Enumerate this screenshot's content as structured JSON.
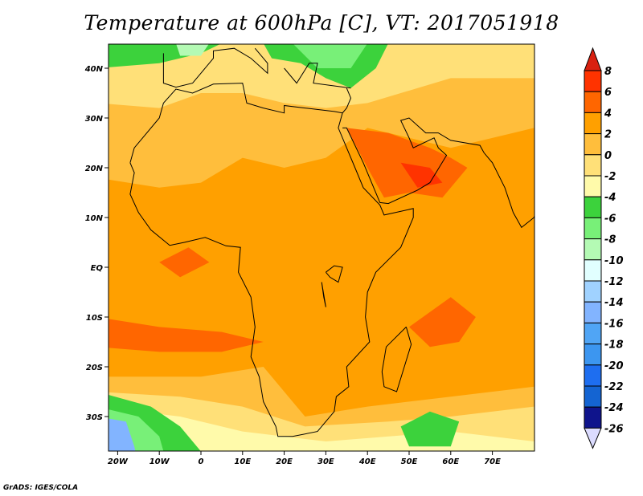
{
  "title": "Temperature at 600hPa [C], VT: 2017051918",
  "credit": "GrADS: IGES/COLA",
  "lat_labels": [
    "40N",
    "30N",
    "20N",
    "10N",
    "EQ",
    "10S",
    "20S",
    "30S"
  ],
  "lon_labels": [
    "20W",
    "10W",
    "0",
    "10E",
    "20E",
    "30E",
    "40E",
    "50E",
    "60E",
    "70E"
  ],
  "colorbar": {
    "labels": [
      "8",
      "6",
      "4",
      "2",
      "0",
      "-2",
      "-4",
      "-6",
      "-8",
      "-10",
      "-12",
      "-14",
      "-16",
      "-18",
      "-20",
      "-22",
      "-24",
      "-26"
    ],
    "over_color": "#d82010",
    "under_color": "#dcdcff",
    "colors": [
      "#ff3300",
      "#ff6600",
      "#ffa000",
      "#ffbe3c",
      "#ffe078",
      "#fffaaa",
      "#3cd23c",
      "#78f078",
      "#b4fab4",
      "#e1ffff",
      "#a0d2ff",
      "#82b4ff",
      "#50a5f5",
      "#3c96f0",
      "#1e6ef0",
      "#1464d2",
      "#0f148c"
    ]
  }
}
